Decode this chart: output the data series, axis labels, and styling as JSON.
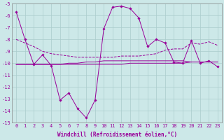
{
  "xlabel": "Windchill (Refroidissement éolien,°C)",
  "ylabel": "",
  "background_color": "#cce8e8",
  "grid_color": "#aacccc",
  "line_color": "#990099",
  "x": [
    0,
    1,
    2,
    3,
    4,
    5,
    6,
    7,
    8,
    9,
    10,
    11,
    12,
    13,
    14,
    15,
    16,
    17,
    18,
    19,
    20,
    21,
    22,
    23
  ],
  "series1": [
    -5.7,
    -8.0,
    -10.1,
    -9.3,
    -10.2,
    -13.1,
    -12.5,
    -13.8,
    -14.6,
    -13.1,
    -7.1,
    -5.3,
    -5.2,
    -5.4,
    -6.2,
    -8.6,
    -8.0,
    -8.3,
    -9.9,
    -10.0,
    -8.1,
    -10.0,
    -9.8,
    -10.3
  ],
  "series2": [
    -8.0,
    -8.3,
    -8.6,
    -9.0,
    -9.2,
    -9.3,
    -9.4,
    -9.5,
    -9.5,
    -9.5,
    -9.5,
    -9.5,
    -9.4,
    -9.4,
    -9.4,
    -9.3,
    -9.2,
    -8.9,
    -8.8,
    -8.8,
    -8.3,
    -8.4,
    -8.2,
    -8.5
  ],
  "series3": [
    -10.1,
    -10.1,
    -10.1,
    -10.1,
    -10.1,
    -10.1,
    -10.0,
    -10.0,
    -9.9,
    -9.9,
    -9.8,
    -9.8,
    -9.8,
    -9.8,
    -9.8,
    -9.8,
    -9.8,
    -9.8,
    -9.8,
    -9.8,
    -9.9,
    -9.9,
    -9.9,
    -9.9
  ],
  "series4": [
    -10.1,
    -10.1,
    -10.1,
    -10.1,
    -10.1,
    -10.1,
    -10.1,
    -10.1,
    -10.1,
    -10.1,
    -10.1,
    -10.1,
    -10.1,
    -10.0,
    -10.0,
    -10.0,
    -10.0,
    -10.0,
    -10.0,
    -10.0,
    -9.9,
    -9.9,
    -9.9,
    -9.9
  ],
  "ylim": [
    -15,
    -5
  ],
  "xlim": [
    -0.5,
    23.5
  ],
  "yticks": [
    -5,
    -6,
    -7,
    -8,
    -9,
    -10,
    -11,
    -12,
    -13,
    -14,
    -15
  ],
  "xticks": [
    0,
    1,
    2,
    3,
    4,
    5,
    6,
    7,
    8,
    9,
    10,
    11,
    12,
    13,
    14,
    15,
    16,
    17,
    18,
    19,
    20,
    21,
    22,
    23
  ],
  "axis_fontsize": 5.5,
  "tick_fontsize": 5.0,
  "xlabel_fontsize": 5.5,
  "lw": 0.7,
  "marker_size": 1.8
}
